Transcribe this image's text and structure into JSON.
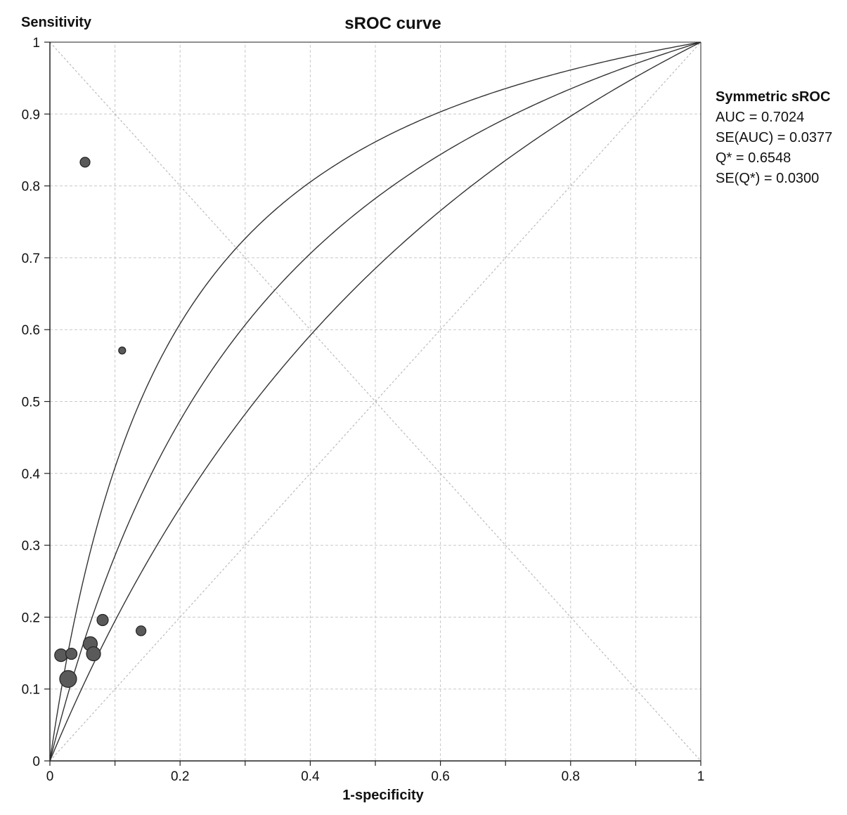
{
  "chart_data": {
    "type": "scatter",
    "title": "sROC curve",
    "xlabel": "1-specificity",
    "ylabel": "Sensitivity",
    "xlim": [
      0,
      1
    ],
    "ylim": [
      0,
      1
    ],
    "x_ticks": [
      "0",
      "0.2",
      "0.4",
      "0.6",
      "0.8",
      "1"
    ],
    "y_ticks": [
      "0",
      "0.1",
      "0.2",
      "0.3",
      "0.4",
      "0.5",
      "0.6",
      "0.7",
      "0.8",
      "0.9",
      "1"
    ],
    "grid": true,
    "legend_position": "right",
    "points": [
      {
        "x": 0.054,
        "y": 0.833,
        "relative_weight": 7
      },
      {
        "x": 0.111,
        "y": 0.571,
        "relative_weight": 5
      },
      {
        "x": 0.081,
        "y": 0.196,
        "relative_weight": 8
      },
      {
        "x": 0.14,
        "y": 0.181,
        "relative_weight": 7
      },
      {
        "x": 0.017,
        "y": 0.147,
        "relative_weight": 9
      },
      {
        "x": 0.033,
        "y": 0.149,
        "relative_weight": 8
      },
      {
        "x": 0.062,
        "y": 0.163,
        "relative_weight": 10
      },
      {
        "x": 0.067,
        "y": 0.149,
        "relative_weight": 10
      },
      {
        "x": 0.028,
        "y": 0.114,
        "relative_weight": 12
      }
    ],
    "curves": [
      "sROC",
      "upper 95% CI",
      "lower 95% CI"
    ],
    "reference_lines": [
      "diagonal",
      "anti-diagonal"
    ],
    "legend": {
      "title": "Symmetric sROC",
      "lines": [
        "AUC = 0.7024",
        "SE(AUC) = 0.0377",
        "Q* = 0.6548",
        "SE(Q*) = 0.0300"
      ]
    },
    "q_star": 0.6548,
    "se_q_star": 0.03,
    "colors": {
      "point_fill": "#5a5a5a",
      "curve": "#333333",
      "grid": "#c8c8c8"
    }
  }
}
